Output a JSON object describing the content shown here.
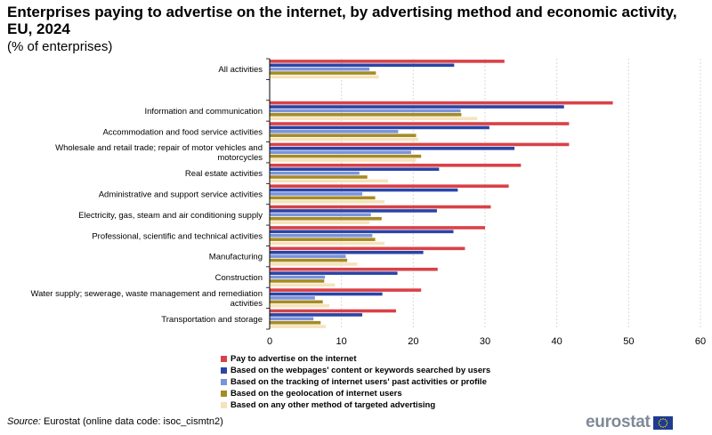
{
  "title": "Enterprises paying to advertise on the internet, by advertising method and economic activity, EU, 2024",
  "subtitle": "(% of enterprises)",
  "source_label": "Source:",
  "source_text": " Eurostat (online data code: isoc_cismtn2)",
  "logo_text": "eurostat",
  "colors": {
    "pay": "#d94147",
    "webpages": "#2a44a6",
    "tracking": "#7b93dc",
    "geolocation": "#a68b24",
    "other": "#f6e3bd",
    "grid": "#d9d9d9",
    "flag": "#1f3c8f",
    "flag_stars": "#f5d81b"
  },
  "chart_data": {
    "type": "bar",
    "orientation": "horizontal",
    "categories": [
      "All activities",
      "",
      "Information and communication",
      "Accommodation and food service activities",
      "Wholesale and retail trade; repair of motor vehicles and motorcycles",
      "Real estate activities",
      "Administrative and support service activities",
      "Electricity, gas, steam and air conditioning supply",
      "Professional, scientific and technical activities",
      "Manufacturing",
      "Construction",
      "Water supply; sewerage, waste management and remediation activities",
      "Transportation and storage"
    ],
    "category_lines": [
      [
        "All activities"
      ],
      [],
      [
        "Information and communication"
      ],
      [
        "Accommodation and food service activities"
      ],
      [
        "Wholesale and retail trade; repair of motor vehicles and",
        "motorcycles"
      ],
      [
        "Real estate activities"
      ],
      [
        "Administrative and support service activities"
      ],
      [
        "Electricity, gas, steam and air conditioning supply"
      ],
      [
        "Professional, scientific and technical activities"
      ],
      [
        "Manufacturing"
      ],
      [
        "Construction"
      ],
      [
        "Water supply; sewerage, waste management and remediation",
        "activities"
      ],
      [
        "Transportation and storage"
      ]
    ],
    "series": [
      {
        "name": "Pay to advertise on the internet",
        "color_key": "pay",
        "values": [
          32.7,
          null,
          47.8,
          41.7,
          41.7,
          35.0,
          33.3,
          30.8,
          30.0,
          27.2,
          23.4,
          21.1,
          17.6
        ]
      },
      {
        "name": "Based on the webpages' content or keywords searched by users",
        "color_key": "webpages",
        "values": [
          25.7,
          null,
          41.0,
          30.6,
          34.1,
          23.6,
          26.2,
          23.3,
          25.6,
          21.4,
          17.8,
          15.7,
          12.9
        ]
      },
      {
        "name": "Based on the tracking of internet users' past activities or profile",
        "color_key": "tracking",
        "values": [
          13.9,
          null,
          26.6,
          17.9,
          19.7,
          12.5,
          12.9,
          14.1,
          14.3,
          10.6,
          7.7,
          6.3,
          6.1
        ]
      },
      {
        "name": "Based on the geolocation of internet users",
        "color_key": "geolocation",
        "values": [
          14.8,
          null,
          26.7,
          20.4,
          21.1,
          13.6,
          14.7,
          15.6,
          14.7,
          10.8,
          7.6,
          7.4,
          7.1
        ]
      },
      {
        "name": "Based on any other method of targeted advertising",
        "color_key": "other",
        "values": [
          15.2,
          null,
          28.9,
          20.7,
          20.4,
          16.5,
          16.0,
          13.9,
          16.0,
          12.2,
          9.1,
          8.3,
          7.8
        ]
      }
    ],
    "xlim": [
      0,
      60
    ],
    "xticks": [
      0,
      10,
      20,
      30,
      40,
      50,
      60
    ],
    "grid": true,
    "legend_position": "bottom"
  }
}
